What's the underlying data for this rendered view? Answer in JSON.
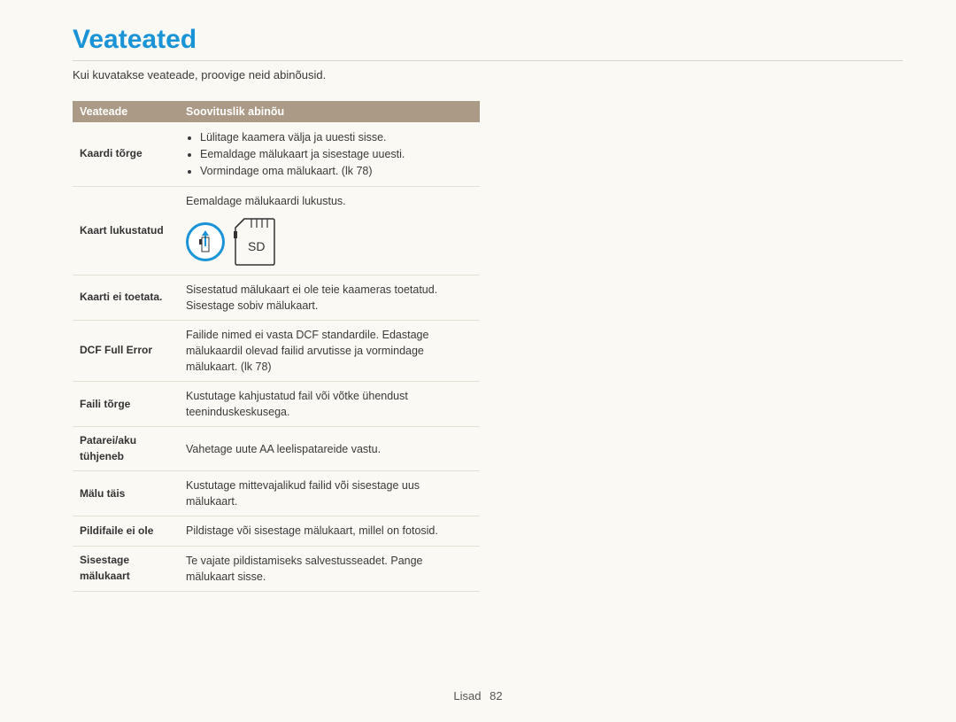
{
  "page": {
    "title": "Veateated",
    "subtitle": "Kui kuvatakse veateade, proovige neid abinõusid.",
    "footer_label": "Lisad",
    "footer_page": "82"
  },
  "colors": {
    "accent": "#1a94d6",
    "header_bg": "#ab9a85",
    "header_fg": "#ffffff",
    "page_bg": "#fbf9f4",
    "rule": "#d8d4c8",
    "row_border": "#e5e0d4"
  },
  "table": {
    "headers": {
      "col1": "Veateade",
      "col2": "Soovituslik abinõu"
    },
    "rows": [
      {
        "label": "Kaardi tõrge",
        "type": "list",
        "items": [
          "Lülitage kaamera välja ja uuesti sisse.",
          "Eemaldage mälukaart ja sisestage uuesti.",
          "Vormindage oma mälukaart. (lk 78)"
        ]
      },
      {
        "label": "Kaart lukustatud",
        "type": "sd",
        "text": "Eemaldage mälukaardi lukustus.",
        "sd_label": "SD"
      },
      {
        "label": "Kaarti ei toetata.",
        "type": "text",
        "text": "Sisestatud mälukaart ei ole teie kaameras toetatud. Sisestage sobiv mälukaart."
      },
      {
        "label": "DCF Full Error",
        "type": "text",
        "text": "Failide nimed ei vasta DCF standardile. Edastage mälukaardil olevad failid arvutisse ja vormindage mälukaart. (lk 78)"
      },
      {
        "label": "Faili tõrge",
        "type": "text",
        "text": "Kustutage kahjustatud fail või võtke ühendust teeninduskeskusega."
      },
      {
        "label": "Patarei/aku tühjeneb",
        "type": "text",
        "text": "Vahetage uute AA leelispatareide vastu."
      },
      {
        "label": "Mälu täis",
        "type": "text",
        "text": "Kustutage mittevajalikud failid või sisestage uus mälukaart."
      },
      {
        "label": "Pildifaile ei ole",
        "type": "text",
        "text": "Pildistage või sisestage mälukaart, millel on fotosid."
      },
      {
        "label": "Sisestage mälukaart",
        "type": "text",
        "text": "Te vajate pildistamiseks salvestusseadet. Pange mälukaart sisse."
      }
    ]
  }
}
